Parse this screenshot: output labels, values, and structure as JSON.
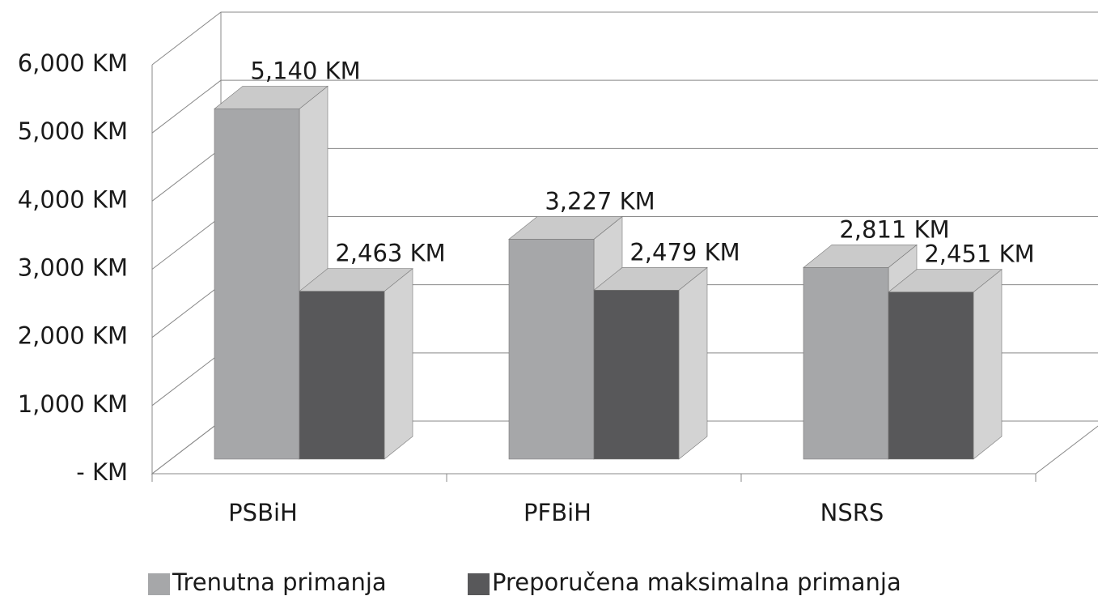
{
  "chart_data": {
    "type": "bar3d",
    "categories": [
      "PSBiH",
      "PFBiH",
      "NSRS"
    ],
    "series": [
      {
        "name": "Trenutna primanja",
        "color": "#a6a7a9",
        "values": [
          5140,
          3227,
          2811
        ],
        "value_labels": [
          "5,140 KM",
          "3,227 KM",
          "2,811 KM"
        ]
      },
      {
        "name": "Preporučena maksimalna primanja",
        "color": "#58585a",
        "values": [
          2463,
          2479,
          2451
        ],
        "value_labels": [
          "2,463 KM",
          "2,479 KM",
          "2,451 KM"
        ]
      }
    ],
    "ylim": [
      0,
      6000
    ],
    "yticks": [
      {
        "value": 0,
        "label": "- KM"
      },
      {
        "value": 1000,
        "label": "1,000 KM"
      },
      {
        "value": 2000,
        "label": "2,000 KM"
      },
      {
        "value": 3000,
        "label": "3,000 KM"
      },
      {
        "value": 4000,
        "label": "4,000 KM"
      },
      {
        "value": 5000,
        "label": "5,000 KM"
      },
      {
        "value": 6000,
        "label": "6,000 KM"
      }
    ],
    "grid": true,
    "legend": "bottom"
  }
}
